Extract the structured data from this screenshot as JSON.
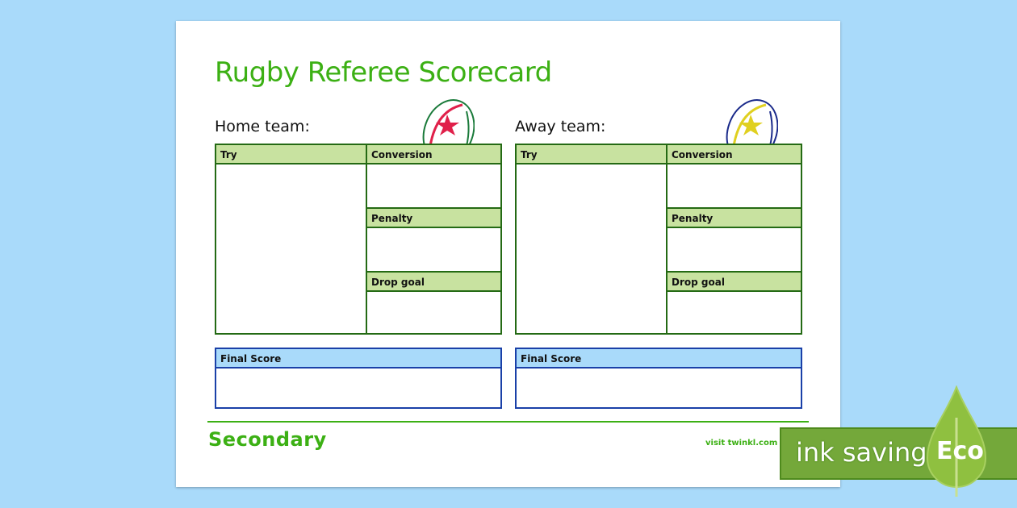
{
  "title": "Rugby Referee Scorecard",
  "teams": [
    {
      "label": "Home team:",
      "ball_color": "#e0204a",
      "ball_stripe": "#1a7a3a"
    },
    {
      "label": "Away team:",
      "ball_color": "#e0d020",
      "ball_stripe": "#1a2a8a"
    }
  ],
  "sections": {
    "try": "Try",
    "conversion": "Conversion",
    "penalty": "Penalty",
    "drop_goal": "Drop goal",
    "final_score": "Final Score"
  },
  "footer": {
    "brand": "Secondary",
    "link": "visit twinkl.com"
  },
  "badge": {
    "text": "ink saving",
    "eco": "Eco"
  },
  "colors": {
    "accent": "#3cb014",
    "table_border": "#246a14",
    "header_fill": "#c8e2a0",
    "final_border": "#1a40a8",
    "final_fill": "#a9dafa"
  }
}
